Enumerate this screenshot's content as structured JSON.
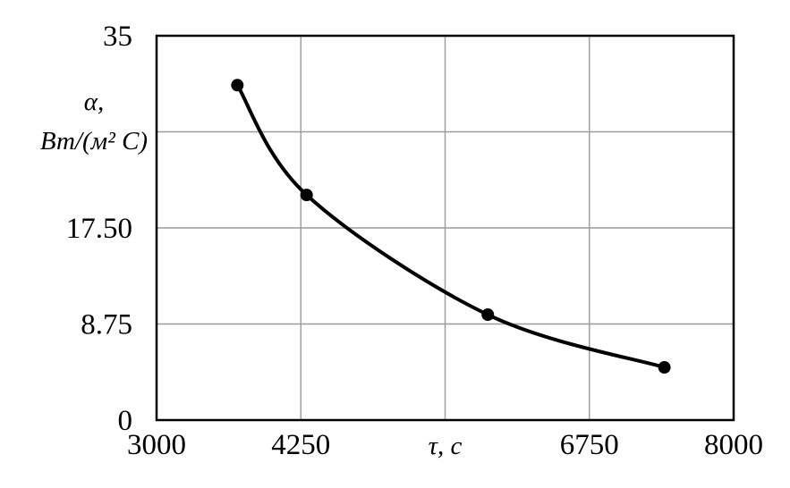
{
  "chart_data": {
    "type": "line",
    "title": "",
    "xlabel": "τ, с",
    "ylabel": "α, Вт/(м² С)",
    "ylabel_lines": [
      "α,",
      "Вт/(м² С)"
    ],
    "x": [
      3700,
      4300,
      5870,
      7400
    ],
    "y": [
      30.5,
      20.5,
      9.6,
      4.8
    ],
    "xlim": [
      3000,
      8000
    ],
    "ylim": [
      0,
      35
    ],
    "xticks": {
      "values": [
        3000,
        4250,
        5500,
        6750,
        8000
      ],
      "labels": [
        "3000",
        "4250",
        "",
        "6750",
        "8000"
      ]
    },
    "yticks": {
      "values": [
        0,
        8.75,
        17.5,
        26.25,
        35
      ],
      "labels": [
        "0",
        "8.75",
        "17.50",
        "",
        "35"
      ]
    },
    "grid": true,
    "legend": "none",
    "colors": {
      "line": "#000000",
      "point": "#000000",
      "grid": "#9b9b9b",
      "frame": "#000000",
      "background": "#ffffff"
    }
  }
}
